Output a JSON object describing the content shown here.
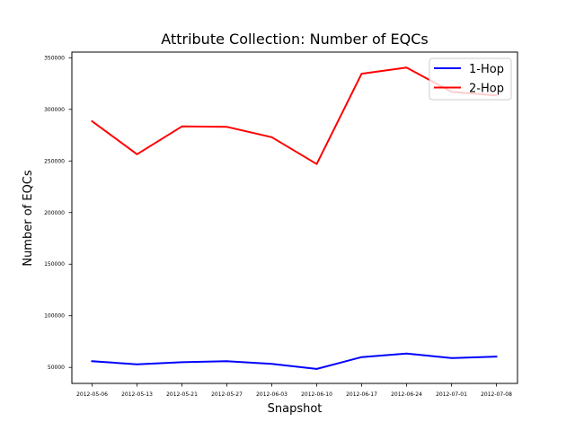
{
  "chart_data": {
    "type": "line",
    "title": "Attribute Collection: Number of EQCs",
    "xlabel": "Snapshot",
    "ylabel": "Number of EQCs",
    "categories": [
      "2012-05-06",
      "2012-05-13",
      "2012-05-21",
      "2012-05-27",
      "2012-06-03",
      "2012-06-10",
      "2012-06-17",
      "2012-06-24",
      "2012-07-01",
      "2012-07-08"
    ],
    "yticks": [
      {
        "value": 50000,
        "label": "50000"
      },
      {
        "value": 100000,
        "label": "100000"
      },
      {
        "value": 150000,
        "label": "150000"
      },
      {
        "value": 200000,
        "label": "200000"
      },
      {
        "value": 250000,
        "label": "250000"
      },
      {
        "value": 300000,
        "label": "300000"
      },
      {
        "value": 350000,
        "label": "350000"
      }
    ],
    "ylim": [
      34500,
      355500
    ],
    "grid": false,
    "legend_position": "top-right",
    "series": [
      {
        "name": "1-Hop",
        "color": "#0000ff",
        "values": [
          56000,
          53000,
          55000,
          56000,
          53500,
          48500,
          60000,
          63500,
          59000,
          60500
        ]
      },
      {
        "name": "2-Hop",
        "color": "#ff0000",
        "values": [
          288500,
          256500,
          283500,
          283000,
          273000,
          247000,
          334500,
          340500,
          317000,
          313500
        ]
      }
    ]
  }
}
